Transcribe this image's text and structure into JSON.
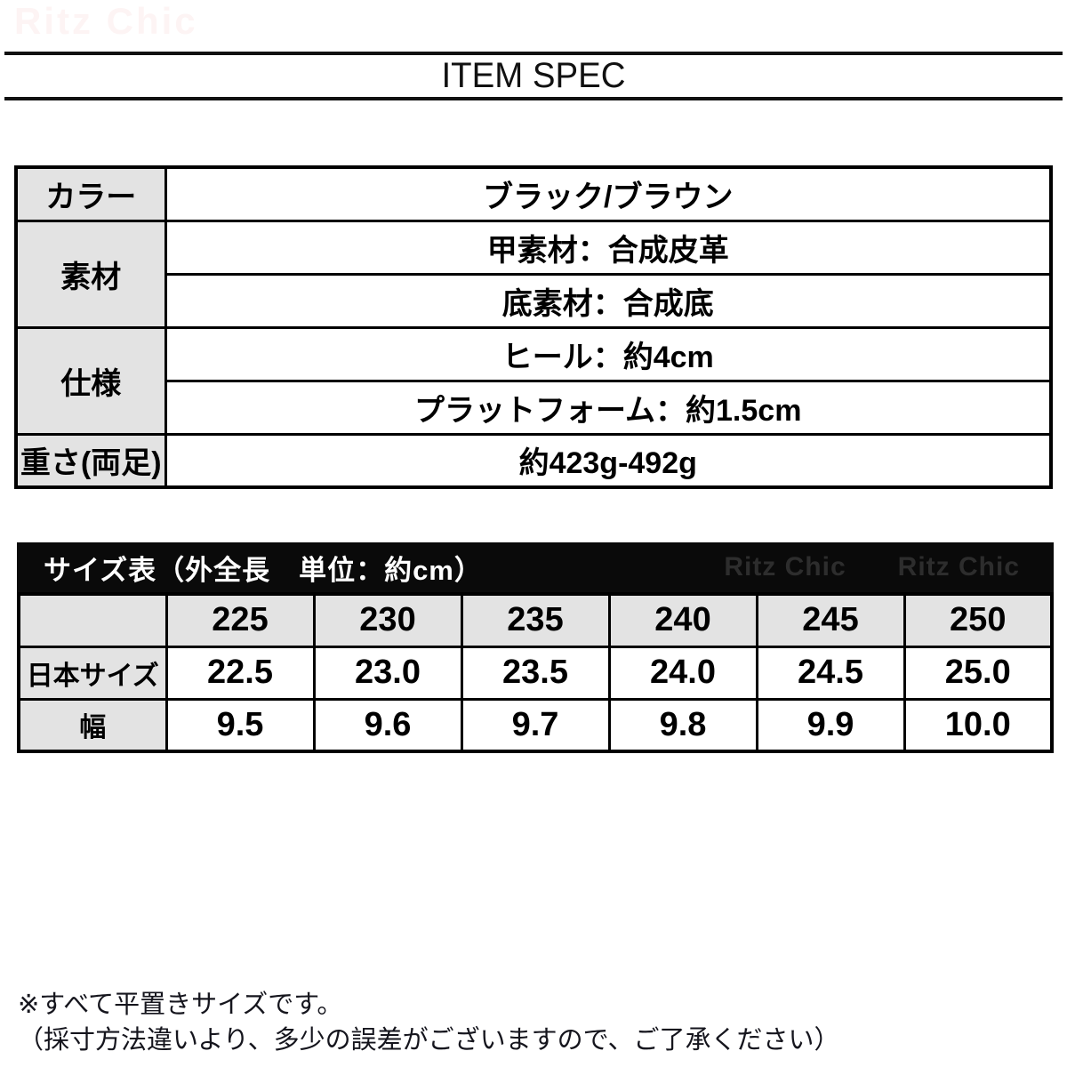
{
  "brand": {
    "watermark": "Ritz Chic"
  },
  "header": {
    "title": "ITEM SPEC"
  },
  "colors": {
    "label_cell_bg": "#e3e3e3",
    "size_bar_bg": "#0a0a0a",
    "top_watermark": "#fdf4f4",
    "bar_watermark": "#2d2d2d",
    "border": "#000000"
  },
  "spec_table": {
    "rows": [
      {
        "label": "カラー",
        "values": [
          "ブラック/ブラウン"
        ]
      },
      {
        "label": "素材",
        "values": [
          "甲素材：合成皮革",
          "底素材：合成底"
        ]
      },
      {
        "label": "仕様",
        "values": [
          "ヒール：約4cm",
          "プラットフォーム：約1.5cm"
        ]
      },
      {
        "label": "重さ(両足)",
        "values": [
          "約423g-492g"
        ]
      }
    ]
  },
  "size_table": {
    "bar_title": "サイズ表（外全長　単位：約cm）",
    "bar_watermark_1": "Ritz Chic",
    "bar_watermark_2": "Ritz Chic",
    "columns": [
      "225",
      "230",
      "235",
      "240",
      "245",
      "250"
    ],
    "rows": [
      {
        "label": "日本サイズ",
        "values": [
          "22.5",
          "23.0",
          "23.5",
          "24.0",
          "24.5",
          "25.0"
        ]
      },
      {
        "label": "幅",
        "values": [
          "9.5",
          "9.6",
          "9.7",
          "9.8",
          "9.9",
          "10.0"
        ]
      }
    ]
  },
  "notes": {
    "line1": "※すべて平置きサイズです。",
    "line2": "（採寸方法違いより、多少の誤差がございますので、ご了承ください）"
  }
}
